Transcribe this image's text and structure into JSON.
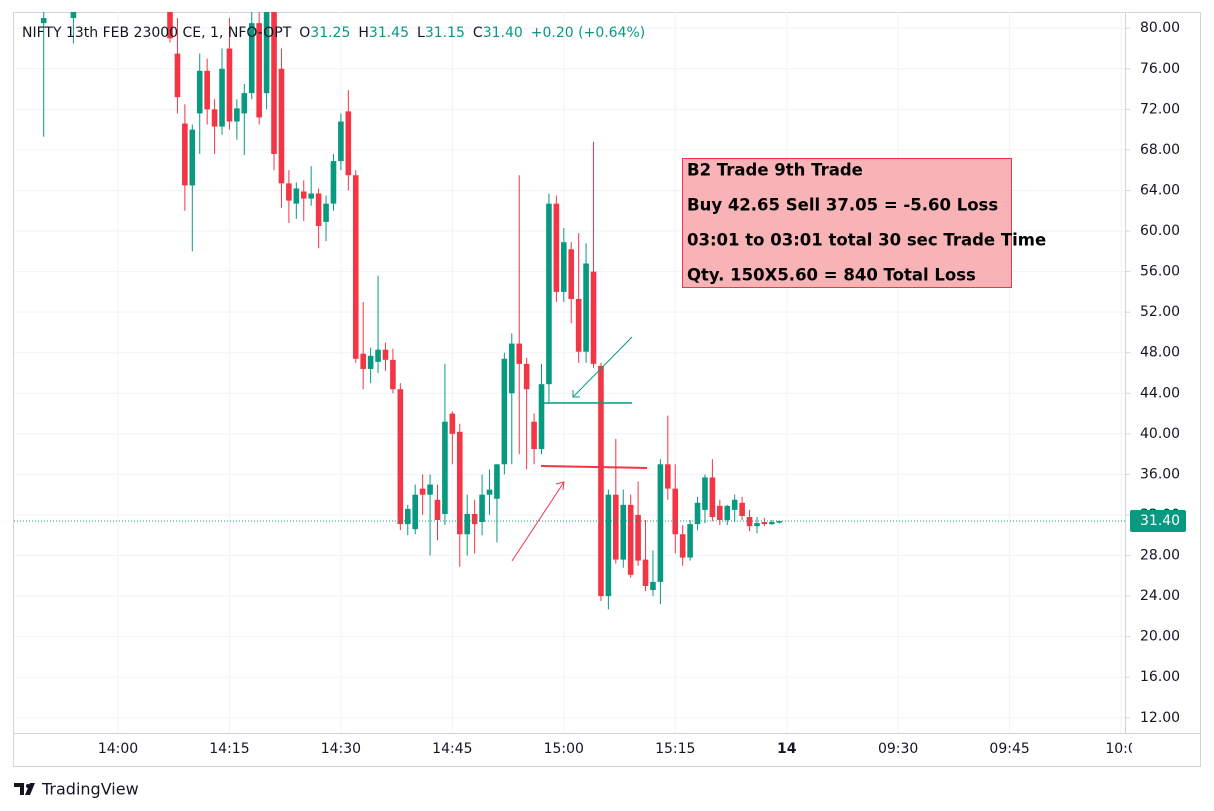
{
  "chart_data": {
    "type": "candlestick",
    "header": {
      "symbol": "NIFTY 13th FEB 23000 CE, 1, NFO-OPT",
      "items": [
        {
          "label": "O",
          "value": "31.25"
        },
        {
          "label": "H",
          "value": "31.45"
        },
        {
          "label": "L",
          "value": "31.15"
        },
        {
          "label": "C",
          "value": "31.40"
        }
      ],
      "change": "+0.20 (+0.64%)"
    },
    "up_color": "#089981",
    "down_color": "#f23645",
    "x": [
      "13:50",
      "13:54",
      "14:07",
      "14:08",
      "14:09",
      "14:10",
      "14:11",
      "14:12",
      "14:13",
      "14:14",
      "14:15",
      "14:16",
      "14:17",
      "14:18",
      "14:19",
      "14:20",
      "14:21",
      "14:22",
      "14:23",
      "14:24",
      "14:25",
      "14:26",
      "14:27",
      "14:28",
      "14:29",
      "14:30",
      "14:31",
      "14:32",
      "14:33",
      "14:34",
      "14:35",
      "14:36",
      "14:37",
      "14:38",
      "14:39",
      "14:40",
      "14:41",
      "14:42",
      "14:43",
      "14:44",
      "14:45",
      "14:46",
      "14:47",
      "14:48",
      "14:49",
      "14:50",
      "14:51",
      "14:52",
      "14:53",
      "14:54",
      "14:55",
      "14:56",
      "14:57",
      "14:58",
      "14:59",
      "15:00",
      "15:01",
      "15:02",
      "15:03",
      "15:04",
      "15:05",
      "15:06",
      "15:07",
      "15:08",
      "15:09",
      "15:10",
      "15:11",
      "15:12",
      "15:13",
      "15:14",
      "15:15",
      "15:16",
      "15:17",
      "15:18",
      "15:19",
      "15:20",
      "15:21",
      "15:22",
      "15:23",
      "15:24",
      "15:25",
      "15:26",
      "15:27",
      "15:28",
      "15:29"
    ],
    "open": [
      80.5,
      81,
      83,
      77.5,
      70.6,
      64.5,
      71.6,
      75.8,
      72,
      70.3,
      78,
      70.8,
      71.6,
      73.6,
      80.5,
      73.6,
      82,
      76,
      64.7,
      62.7,
      63.9,
      63.2,
      63.7,
      60.9,
      62.7,
      66.9,
      71.8,
      65.5,
      47.9,
      46.4,
      47.1,
      48.3,
      47.3,
      44.4,
      31.1,
      30.6,
      34.6,
      34,
      33.5,
      32.1,
      42,
      40.2,
      30.1,
      32.1,
      31.3,
      34,
      33.6,
      37,
      44,
      48.9,
      46.9,
      41.2,
      38.5,
      44.9,
      62.7,
      54,
      58.2,
      53.3,
      48.1,
      56,
      46.7,
      24,
      34,
      27.6,
      33,
      32,
      27.6,
      24.6,
      25.4,
      37,
      34.6,
      30.1,
      27.8,
      31.1,
      32.5,
      35.7,
      32.9,
      31.5,
      32.5,
      33.2,
      31.8,
      30.9,
      31.3,
      31.1,
      31.25
    ],
    "high": [
      83,
      84,
      84,
      81,
      72.5,
      70.5,
      77.5,
      77,
      73,
      78,
      81,
      73,
      74.5,
      82,
      83,
      84,
      84,
      78,
      66,
      64.8,
      65,
      66.4,
      64.2,
      63.5,
      67.6,
      71.6,
      73.9,
      66,
      53,
      48.5,
      55.6,
      49,
      48.4,
      45,
      33,
      35,
      36,
      36,
      35,
      46.9,
      42.2,
      41,
      34,
      33.5,
      36,
      36.5,
      37,
      48,
      49.9,
      65.5,
      47.5,
      42,
      46.9,
      63.7,
      63.5,
      60.3,
      58.9,
      59.8,
      58.8,
      68.8,
      47,
      34.5,
      39.5,
      34.5,
      34,
      35.3,
      31.5,
      28.5,
      37.5,
      41.8,
      37,
      31,
      31.5,
      33.8,
      36,
      37.5,
      33.5,
      33,
      34,
      33.8,
      32.5,
      31.8,
      31.7,
      31.5,
      31.45
    ],
    "low": [
      69.3,
      78.5,
      78.6,
      71.6,
      62,
      58,
      67.6,
      70.5,
      67.6,
      69.5,
      70,
      69,
      67.5,
      73,
      70.5,
      72,
      66,
      62.3,
      60.8,
      61.2,
      61,
      62.5,
      58.3,
      59,
      62,
      66,
      64,
      47,
      44.4,
      45,
      46,
      46.2,
      44,
      30.5,
      30,
      30.1,
      32,
      28,
      29.5,
      31,
      37,
      26.9,
      28,
      28.2,
      30,
      32,
      29.3,
      36,
      37,
      38,
      36.5,
      37,
      38,
      43,
      53,
      53,
      50.9,
      47,
      47,
      46.5,
      23.5,
      22.7,
      27.2,
      26.8,
      25.8,
      27,
      24.5,
      24,
      23.2,
      33.5,
      28.2,
      27,
      27.5,
      30.5,
      31.2,
      31.4,
      31,
      31,
      31.3,
      31.5,
      30.4,
      30.2,
      30.9,
      31,
      31.15
    ],
    "close": [
      81,
      83,
      79,
      73.2,
      64.5,
      70,
      75.8,
      72,
      70.3,
      76,
      70.8,
      72.1,
      73.6,
      80.5,
      71.2,
      82,
      67.6,
      64.7,
      63,
      64.2,
      63.2,
      63.7,
      60.5,
      62.7,
      66.9,
      70.8,
      65.5,
      47.4,
      46.4,
      47.7,
      48.3,
      47.3,
      44.4,
      31.1,
      32.6,
      34,
      34,
      35,
      31.5,
      41.2,
      40,
      30.1,
      32.1,
      31.1,
      34,
      34.5,
      37,
      47.4,
      48.9,
      46.9,
      44.4,
      38.5,
      44.9,
      62.7,
      54,
      58.9,
      53.3,
      48.1,
      56.8,
      46.9,
      24,
      34,
      27.6,
      33,
      26.1,
      27.5,
      25,
      25.4,
      37,
      34.6,
      30.1,
      27.8,
      31.1,
      33.2,
      35.7,
      31.8,
      31.5,
      32.9,
      33.5,
      31.9,
      30.9,
      31.2,
      31.1,
      31.3,
      31.4
    ],
    "ylim": [
      10.5,
      81.6
    ],
    "yticks": [
      {
        "value": 80,
        "label": "80.00"
      },
      {
        "value": 76,
        "label": "76.00"
      },
      {
        "value": 72,
        "label": "72.00"
      },
      {
        "value": 68,
        "label": "68.00"
      },
      {
        "value": 64,
        "label": "64.00"
      },
      {
        "value": 60,
        "label": "60.00"
      },
      {
        "value": 56,
        "label": "56.00"
      },
      {
        "value": 52,
        "label": "52.00"
      },
      {
        "value": 48,
        "label": "48.00"
      },
      {
        "value": 44,
        "label": "44.00"
      },
      {
        "value": 40,
        "label": "40.00"
      },
      {
        "value": 36,
        "label": "36.00"
      },
      {
        "value": 32,
        "label": "32.00"
      },
      {
        "value": 28,
        "label": "28.00"
      },
      {
        "value": 24,
        "label": "24.00"
      },
      {
        "value": 20,
        "label": "20.00"
      },
      {
        "value": 16,
        "label": "16.00"
      },
      {
        "value": 12,
        "label": "12.00"
      }
    ],
    "xticks": [
      "14:00",
      "14:15",
      "14:30",
      "14:45",
      "15:00",
      "15:15",
      "14",
      "09:30",
      "09:45",
      "10:0"
    ],
    "last_price": {
      "value": 31.4,
      "label": "31.40"
    },
    "annotation": [
      "B2 Trade 9th Trade",
      "Buy 42.65 Sell 37.05 = -5.60 Loss",
      "03:01 to 03:01 total  30 sec Trade Time",
      "Qty. 150X5.60 = 840 Total Loss"
    ],
    "grid": true
  },
  "footer": {
    "brand": "TradingView"
  }
}
